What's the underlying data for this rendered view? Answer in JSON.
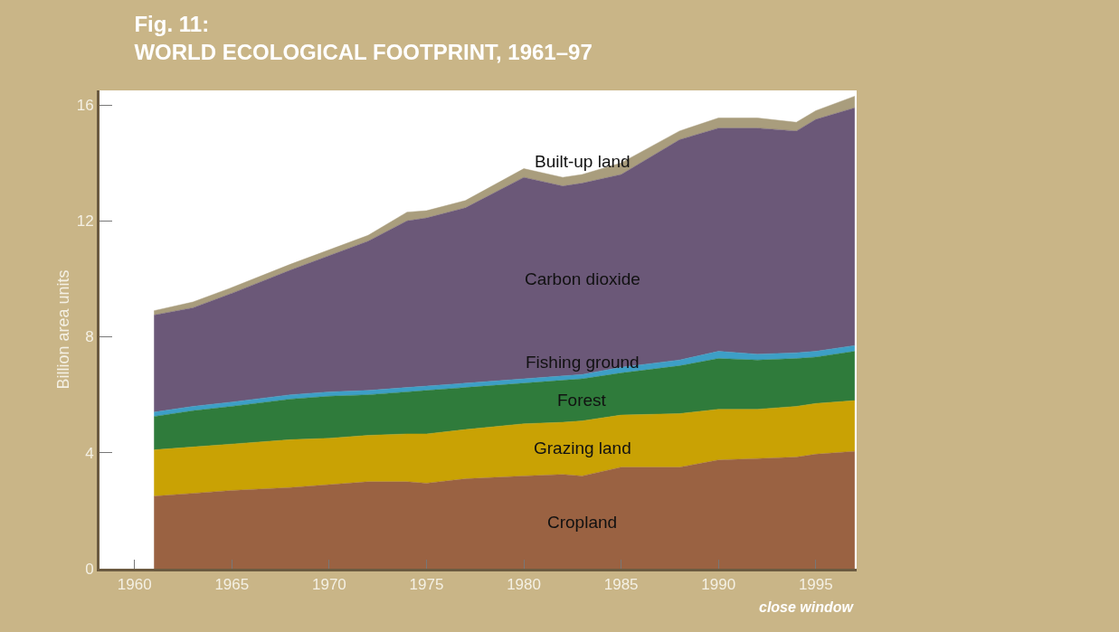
{
  "chart_data": {
    "type": "area",
    "stacked": true,
    "title": "Fig. 11:\nWORLD ECOLOGICAL FOOTPRINT, 1961–97",
    "ylabel": "Billion area units",
    "x": [
      1961,
      1963,
      1965,
      1968,
      1970,
      1972,
      1974,
      1975,
      1977,
      1980,
      1982,
      1983,
      1985,
      1988,
      1990,
      1992,
      1994,
      1995,
      1997
    ],
    "series": [
      {
        "name": "Cropland",
        "color": "#9a6242",
        "values": [
          2.5,
          2.6,
          2.7,
          2.8,
          2.9,
          3.0,
          3.0,
          2.95,
          3.1,
          3.2,
          3.25,
          3.2,
          3.5,
          3.5,
          3.75,
          3.8,
          3.85,
          3.95,
          4.05
        ]
      },
      {
        "name": "Grazing land",
        "color": "#c9a204",
        "values": [
          1.6,
          1.6,
          1.6,
          1.65,
          1.6,
          1.6,
          1.65,
          1.7,
          1.7,
          1.8,
          1.8,
          1.9,
          1.8,
          1.85,
          1.75,
          1.7,
          1.75,
          1.75,
          1.75
        ]
      },
      {
        "name": "Forest",
        "color": "#2f7b3b",
        "values": [
          1.15,
          1.25,
          1.3,
          1.4,
          1.45,
          1.4,
          1.45,
          1.5,
          1.45,
          1.4,
          1.45,
          1.45,
          1.45,
          1.65,
          1.75,
          1.7,
          1.65,
          1.6,
          1.7
        ]
      },
      {
        "name": "Fishing ground",
        "color": "#3d9fc6",
        "values": [
          0.15,
          0.15,
          0.15,
          0.15,
          0.15,
          0.15,
          0.15,
          0.15,
          0.15,
          0.15,
          0.15,
          0.15,
          0.2,
          0.2,
          0.25,
          0.2,
          0.2,
          0.2,
          0.2
        ]
      },
      {
        "name": "Carbon dioxide",
        "color": "#6b5878",
        "values": [
          3.35,
          3.4,
          3.75,
          4.3,
          4.7,
          5.15,
          5.75,
          5.8,
          6.05,
          6.95,
          6.55,
          6.6,
          6.65,
          7.6,
          7.7,
          7.8,
          7.65,
          8.0,
          8.2
        ]
      },
      {
        "name": "Built-up land",
        "color": "#a99d7d",
        "values": [
          0.15,
          0.2,
          0.2,
          0.2,
          0.2,
          0.2,
          0.3,
          0.25,
          0.25,
          0.3,
          0.3,
          0.3,
          0.4,
          0.3,
          0.35,
          0.35,
          0.3,
          0.3,
          0.4
        ]
      }
    ],
    "xlim": [
      1958.2,
      1997.1
    ],
    "ylim": [
      0,
      16.5
    ],
    "xticks": [
      1960,
      1965,
      1970,
      1975,
      1980,
      1985,
      1990,
      1995
    ],
    "yticks": [
      0,
      4,
      8,
      12,
      16
    ],
    "annotations": [
      "close window"
    ]
  }
}
